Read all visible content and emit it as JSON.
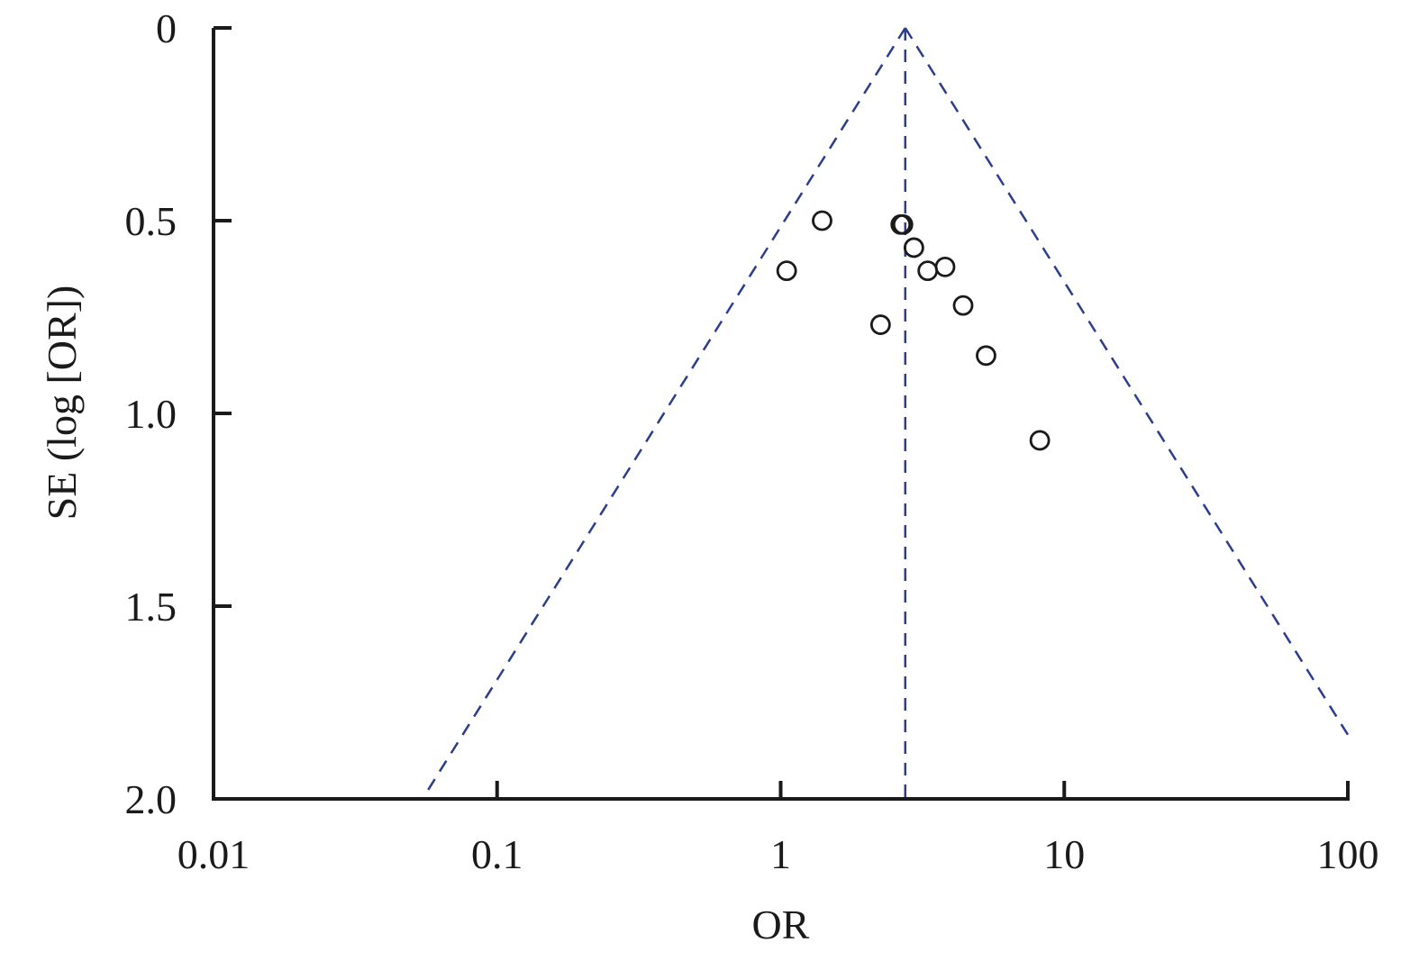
{
  "chart_data": {
    "type": "scatter",
    "title": "",
    "xlabel": "OR",
    "ylabel": "SE (log [OR])",
    "x_scale": "log",
    "x_ticks": [
      0.01,
      0.1,
      1,
      10,
      100
    ],
    "x_tick_labels": [
      "0.01",
      "0.1",
      "1",
      "10",
      "100"
    ],
    "xlim": [
      0.01,
      100
    ],
    "y_ticks": [
      0,
      0.5,
      1.0,
      1.5,
      2.0
    ],
    "y_tick_labels": [
      "0",
      "0.5",
      "1.0",
      "1.5",
      "2.0"
    ],
    "ylim": [
      0,
      2.0
    ],
    "y_inverted": true,
    "grid": false,
    "pooled_or": 2.75,
    "funnel_limits": "pseudo 95% confidence limits (dashed)",
    "points": [
      {
        "x": 1.4,
        "y": 0.5
      },
      {
        "x": 1.05,
        "y": 0.63
      },
      {
        "x": 2.65,
        "y": 0.51
      },
      {
        "x": 2.7,
        "y": 0.51
      },
      {
        "x": 2.95,
        "y": 0.57
      },
      {
        "x": 3.3,
        "y": 0.63
      },
      {
        "x": 3.8,
        "y": 0.62
      },
      {
        "x": 4.4,
        "y": 0.72
      },
      {
        "x": 2.25,
        "y": 0.77
      },
      {
        "x": 5.3,
        "y": 0.85
      },
      {
        "x": 8.2,
        "y": 1.07
      }
    ],
    "colors": {
      "axis": "#1a1a1a",
      "points": "#1a1a1a",
      "funnel": "#2b3d8f"
    }
  }
}
